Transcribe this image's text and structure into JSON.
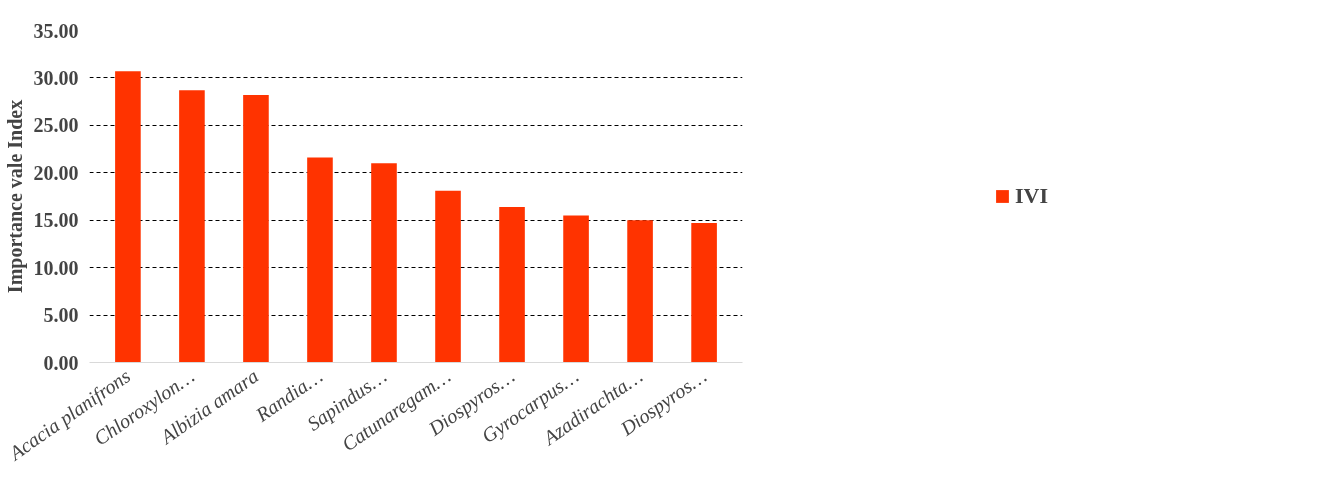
{
  "chart_data": {
    "type": "bar",
    "ylabel": "Importance vale Index",
    "categories": [
      "Acacia planifrons",
      "Chloroxylon…",
      "Albizia amara",
      "Randia…",
      "Sapindus…",
      "Catunaregam…",
      "Diospyros…",
      "Gyrocarpus…",
      "Azadirachta…",
      "Diospyros…"
    ],
    "series": [
      {
        "name": "IVI",
        "color": "#ff3300",
        "values": [
          30.7,
          28.7,
          28.2,
          21.6,
          21.0,
          18.1,
          16.4,
          15.5,
          15.0,
          14.7
        ]
      }
    ],
    "ylim": [
      0,
      35
    ],
    "yticks": [
      {
        "value": 0,
        "label": "0.00"
      },
      {
        "value": 5,
        "label": "5.00"
      },
      {
        "value": 10,
        "label": "10.00"
      },
      {
        "value": 15,
        "label": "15.00"
      },
      {
        "value": 20,
        "label": "20.00"
      },
      {
        "value": 25,
        "label": "25.00"
      },
      {
        "value": 30,
        "label": "30.00"
      },
      {
        "value": 35,
        "label": "35.00"
      }
    ],
    "grid": "y",
    "legend": "right"
  }
}
